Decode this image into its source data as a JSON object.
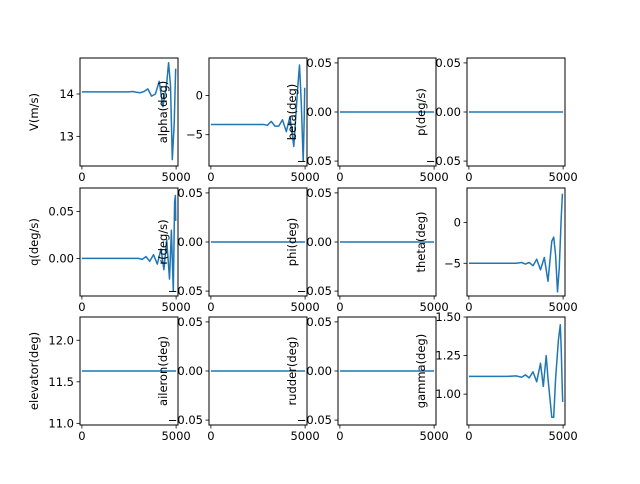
{
  "chart_data": [
    {
      "type": "line",
      "ylabel": "V(m/s)",
      "xlim": [
        -100,
        5100
      ],
      "ylim": [
        12.3,
        14.85
      ],
      "xticks": [
        0,
        5000
      ],
      "xtick_labels": [
        "0",
        "5000"
      ],
      "yticks": [
        13,
        14
      ],
      "ytick_labels": [
        "13",
        "14"
      ],
      "series": [
        {
          "name": "V",
          "values": [
            [
              0,
              14.05
            ],
            [
              2500,
              14.05
            ],
            [
              2700,
              14.06
            ],
            [
              2900,
              14.04
            ],
            [
              3100,
              14.03
            ],
            [
              3300,
              14.06
            ],
            [
              3500,
              14.12
            ],
            [
              3700,
              13.95
            ],
            [
              3900,
              14.0
            ],
            [
              4100,
              14.3
            ],
            [
              4300,
              13.7
            ],
            [
              4500,
              14.25
            ],
            [
              4600,
              14.74
            ],
            [
              4700,
              14.2
            ],
            [
              4800,
              12.45
            ],
            [
              4900,
              13.3
            ],
            [
              4950,
              14.2
            ],
            [
              4980,
              14.6
            ]
          ]
        }
      ]
    },
    {
      "type": "line",
      "ylabel": "alpha(deg)",
      "xlim": [
        -100,
        5100
      ],
      "ylim": [
        -9,
        4.8
      ],
      "xticks": [
        0,
        5000
      ],
      "xtick_labels": [
        "0",
        "5000"
      ],
      "yticks": [
        -5,
        0
      ],
      "ytick_labels": [
        "−5",
        "0"
      ],
      "series": [
        {
          "name": "alpha",
          "values": [
            [
              0,
              -3.7
            ],
            [
              2500,
              -3.7
            ],
            [
              2800,
              -3.7
            ],
            [
              3000,
              -3.8
            ],
            [
              3200,
              -3.3
            ],
            [
              3400,
              -3.9
            ],
            [
              3600,
              -3.9
            ],
            [
              3800,
              -3.1
            ],
            [
              4000,
              -4.6
            ],
            [
              4200,
              -2.7
            ],
            [
              4400,
              -6.5
            ],
            [
              4600,
              0.8
            ],
            [
              4700,
              3.9
            ],
            [
              4800,
              -1.0
            ],
            [
              4900,
              -8.4
            ],
            [
              4950,
              -3.0
            ],
            [
              4980,
              1.0
            ]
          ]
        }
      ]
    },
    {
      "type": "line",
      "ylabel": "beta(deg)",
      "xlim": [
        -100,
        5100
      ],
      "ylim": [
        -0.055,
        0.055
      ],
      "xticks": [
        0,
        5000
      ],
      "xtick_labels": [
        "0",
        "5000"
      ],
      "yticks": [
        -0.05,
        0,
        0.05
      ],
      "ytick_labels": [
        "−0.05",
        "0.00",
        "0.05"
      ],
      "series": [
        {
          "name": "beta",
          "values": [
            [
              0,
              0
            ],
            [
              5000,
              0
            ]
          ]
        }
      ]
    },
    {
      "type": "line",
      "ylabel": "p(deg/s)",
      "xlim": [
        -100,
        5100
      ],
      "ylim": [
        -0.055,
        0.055
      ],
      "xticks": [
        0,
        5000
      ],
      "xtick_labels": [
        "0",
        "5000"
      ],
      "yticks": [
        -0.05,
        0,
        0.05
      ],
      "ytick_labels": [
        "−0.05",
        "0.00",
        "0.05"
      ],
      "series": [
        {
          "name": "p",
          "values": [
            [
              0,
              0
            ],
            [
              5000,
              0
            ]
          ]
        }
      ]
    },
    {
      "type": "line",
      "ylabel": "q(deg/s)",
      "xlim": [
        -100,
        5100
      ],
      "ylim": [
        -0.04,
        0.075
      ],
      "xticks": [
        0,
        5000
      ],
      "xtick_labels": [
        "0",
        "5000"
      ],
      "yticks": [
        0,
        0.05
      ],
      "ytick_labels": [
        "0.00",
        "0.05"
      ],
      "series": [
        {
          "name": "q",
          "values": [
            [
              0,
              0
            ],
            [
              2500,
              0
            ],
            [
              3000,
              0.0
            ],
            [
              3200,
              -0.001
            ],
            [
              3400,
              0.002
            ],
            [
              3600,
              -0.003
            ],
            [
              3800,
              0.004
            ],
            [
              4000,
              -0.006
            ],
            [
              4200,
              0.01
            ],
            [
              4350,
              -0.012
            ],
            [
              4500,
              0.02
            ],
            [
              4650,
              -0.022
            ],
            [
              4750,
              0.03
            ],
            [
              4850,
              -0.035
            ],
            [
              4920,
              0.06
            ],
            [
              4960,
              0.067
            ],
            [
              4980,
              0.04
            ]
          ]
        }
      ]
    },
    {
      "type": "line",
      "ylabel": "r(deg/s)",
      "xlim": [
        -100,
        5100
      ],
      "ylim": [
        -0.055,
        0.055
      ],
      "xticks": [
        0,
        5000
      ],
      "xtick_labels": [
        "0",
        "5000"
      ],
      "yticks": [
        -0.05,
        0,
        0.05
      ],
      "ytick_labels": [
        "−0.05",
        "0.00",
        "0.05"
      ],
      "series": [
        {
          "name": "r",
          "values": [
            [
              0,
              0
            ],
            [
              5000,
              0
            ]
          ]
        }
      ]
    },
    {
      "type": "line",
      "ylabel": "phi(deg)",
      "xlim": [
        -100,
        5100
      ],
      "ylim": [
        -0.055,
        0.055
      ],
      "xticks": [
        0,
        5000
      ],
      "xtick_labels": [
        "0",
        "5000"
      ],
      "yticks": [
        -0.05,
        0,
        0.05
      ],
      "ytick_labels": [
        "−0.05",
        "0.00",
        "0.05"
      ],
      "series": [
        {
          "name": "phi",
          "values": [
            [
              0,
              0
            ],
            [
              5000,
              0
            ]
          ]
        }
      ]
    },
    {
      "type": "line",
      "ylabel": "theta(deg)",
      "xlim": [
        -100,
        5100
      ],
      "ylim": [
        -9,
        4.2
      ],
      "xticks": [
        0,
        5000
      ],
      "xtick_labels": [
        "0",
        "5000"
      ],
      "yticks": [
        -5,
        0
      ],
      "ytick_labels": [
        "−5",
        "0"
      ],
      "series": [
        {
          "name": "theta",
          "values": [
            [
              0,
              -5.0
            ],
            [
              2500,
              -5.0
            ],
            [
              2800,
              -4.9
            ],
            [
              3000,
              -5.1
            ],
            [
              3200,
              -4.9
            ],
            [
              3400,
              -5.3
            ],
            [
              3600,
              -4.5
            ],
            [
              3800,
              -5.8
            ],
            [
              4000,
              -4.3
            ],
            [
              4200,
              -7.2
            ],
            [
              4400,
              -2.3
            ],
            [
              4500,
              -1.8
            ],
            [
              4600,
              -4.0
            ],
            [
              4700,
              -8.5
            ],
            [
              4800,
              -5.5
            ],
            [
              4900,
              0.5
            ],
            [
              4960,
              3.5
            ]
          ]
        }
      ]
    },
    {
      "type": "line",
      "ylabel": "elevator(deg)",
      "xlim": [
        -100,
        5100
      ],
      "ylim": [
        10.98,
        12.28
      ],
      "xticks": [
        0,
        5000
      ],
      "xtick_labels": [
        "0",
        "5000"
      ],
      "yticks": [
        11,
        11.5,
        12
      ],
      "ytick_labels": [
        "11.0",
        "11.5",
        "12.0"
      ],
      "series": [
        {
          "name": "elevator",
          "values": [
            [
              0,
              11.63
            ],
            [
              5000,
              11.63
            ]
          ]
        }
      ]
    },
    {
      "type": "line",
      "ylabel": "aileron(deg)",
      "xlim": [
        -100,
        5100
      ],
      "ylim": [
        -0.055,
        0.055
      ],
      "xticks": [
        0,
        5000
      ],
      "xtick_labels": [
        "0",
        "5000"
      ],
      "yticks": [
        -0.05,
        0,
        0.05
      ],
      "ytick_labels": [
        "−0.05",
        "0.00",
        "0.05"
      ],
      "series": [
        {
          "name": "aileron",
          "values": [
            [
              0,
              0
            ],
            [
              5000,
              0
            ]
          ]
        }
      ]
    },
    {
      "type": "line",
      "ylabel": "rudder(deg)",
      "xlim": [
        -100,
        5100
      ],
      "ylim": [
        -0.055,
        0.055
      ],
      "xticks": [
        0,
        5000
      ],
      "xtick_labels": [
        "0",
        "5000"
      ],
      "yticks": [
        -0.05,
        0,
        0.05
      ],
      "ytick_labels": [
        "−0.05",
        "0.00",
        "0.05"
      ],
      "series": [
        {
          "name": "rudder",
          "values": [
            [
              0,
              0
            ],
            [
              5000,
              0
            ]
          ]
        }
      ]
    },
    {
      "type": "line",
      "ylabel": "gamma(deg)",
      "xlim": [
        -100,
        5100
      ],
      "ylim": [
        0.8,
        1.5
      ],
      "xticks": [
        0,
        5000
      ],
      "xtick_labels": [
        "0",
        "5000"
      ],
      "yticks": [
        1.0,
        1.25,
        1.5
      ],
      "ytick_labels": [
        "1.00",
        "1.25",
        "1.50"
      ],
      "series": [
        {
          "name": "gamma",
          "values": [
            [
              0,
              1.115
            ],
            [
              2000,
              1.115
            ],
            [
              2500,
              1.118
            ],
            [
              2800,
              1.11
            ],
            [
              3000,
              1.125
            ],
            [
              3200,
              1.105
            ],
            [
              3400,
              1.145
            ],
            [
              3600,
              1.08
            ],
            [
              3800,
              1.2
            ],
            [
              3950,
              1.05
            ],
            [
              4100,
              1.25
            ],
            [
              4200,
              1.1
            ],
            [
              4400,
              0.85
            ],
            [
              4500,
              0.85
            ],
            [
              4600,
              1.1
            ],
            [
              4750,
              1.35
            ],
            [
              4850,
              1.45
            ],
            [
              4900,
              1.3
            ],
            [
              4950,
              1.05
            ],
            [
              4980,
              0.95
            ]
          ]
        }
      ]
    }
  ]
}
